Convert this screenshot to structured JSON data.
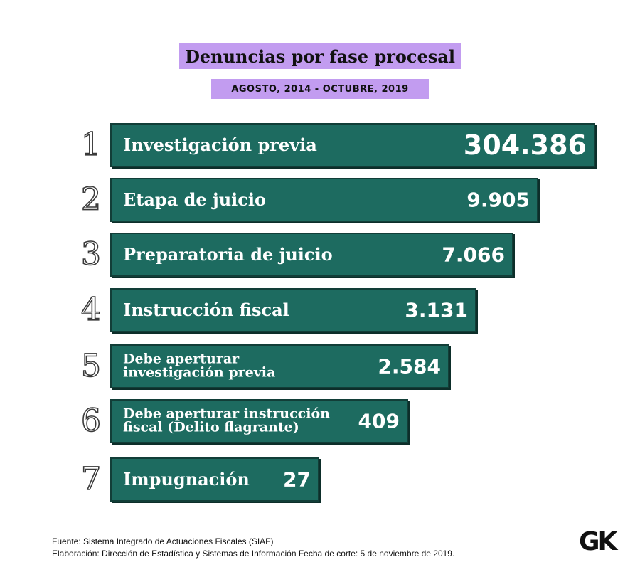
{
  "chart_data": {
    "type": "bar",
    "title": "Denuncias por fase procesal",
    "subtitle": "AGOSTO, 2014 - OCTUBRE, 2019",
    "orientation": "horizontal",
    "categories": [
      "Investigación previa",
      "Etapa de juicio",
      "Preparatoria de juicio",
      "Instrucción fiscal",
      "Debe aperturar\ninvestigación previa",
      "Debe aperturar instrucción\nfiscal (Delito flagrante)",
      "Impugnación"
    ],
    "values": [
      304386,
      9905,
      7066,
      3131,
      2584,
      409,
      27
    ],
    "value_labels": [
      "304.386",
      "9.905",
      "7.066",
      "3.131",
      "2.584",
      "409",
      "27"
    ],
    "ranks": [
      "1",
      "2",
      "3",
      "4",
      "5",
      "6",
      "7"
    ],
    "colors": {
      "bar": "#1d6b60",
      "title_bg": "#c29cf0"
    }
  },
  "footer": {
    "source": "Fuente: Sistema Integrado de Actuaciones Fiscales (SIAF)",
    "credits": "Elaboración: Dirección de Estadística y Sistemas de Información  Fecha de corte: 5 de noviembre de 2019."
  },
  "logo": "GK"
}
